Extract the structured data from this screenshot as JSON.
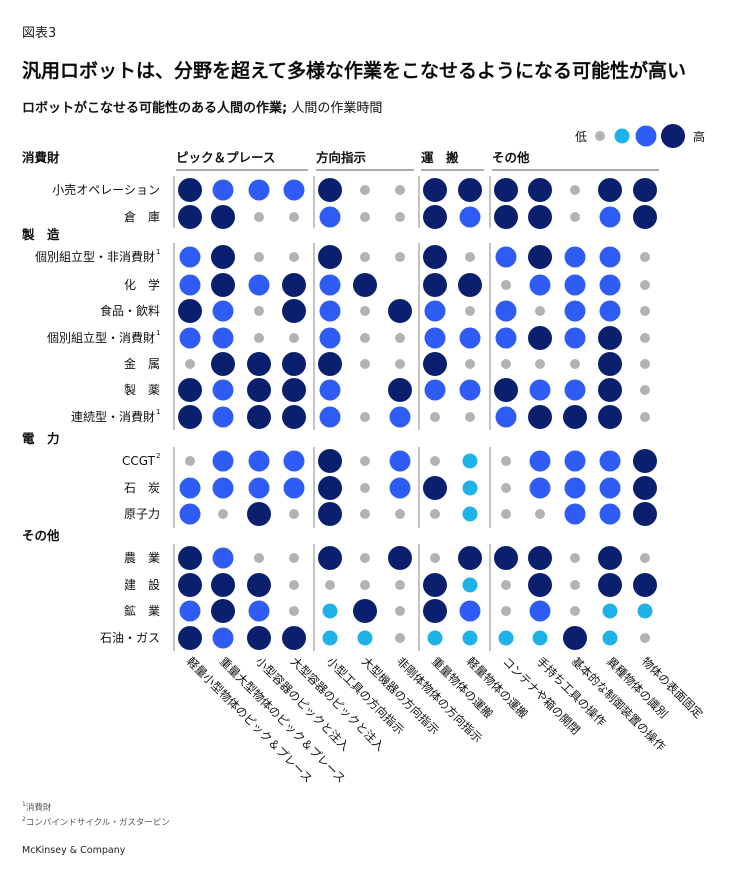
{
  "figure_label": "図表3",
  "title": "汎用ロボットは、分野を超えて多様な作業をこなせるようになる可能性が高い",
  "subtitle_bold": "ロボットがこなせる可能性のある人間の作業;",
  "subtitle_rest": " 人間の作業時間",
  "legend": {
    "low": "低",
    "high": "高"
  },
  "colors": {
    "level1": "#b3b3b3",
    "level2": "#1fb2e8",
    "level3": "#2f5cf5",
    "level4": "#0a1f6e",
    "rule": "#555555"
  },
  "footnotes": [
    "消費財",
    "コンバインドサイクル・ガスタービン"
  ],
  "footnote_marks": [
    "1",
    "2"
  ],
  "brand": "McKinsey & Company",
  "chart_data": {
    "type": "heatmap",
    "scale": "1 = 低 … 4 = 高 (0 = 空白)",
    "column_groups": [
      {
        "label": "ピック＆プレース",
        "span": [
          0,
          3
        ]
      },
      {
        "label": "方向指示",
        "span": [
          4,
          6
        ]
      },
      {
        "label": "運　搬",
        "span": [
          7,
          8
        ]
      },
      {
        "label": "その他",
        "span": [
          9,
          13
        ]
      }
    ],
    "columns": [
      "軽量小型物体のピック＆プレース",
      "重量大型物体のピック＆プレース",
      "小型容器のピックと注入",
      "大型容器のピックと注入",
      "小型工具の方向指示",
      "大型機器の方向指示",
      "非剛体物体の方向指示",
      "重量物体の運搬",
      "軽量物体の運搬",
      "コンテナや箱の開閉",
      "手持ち工具の操作",
      "基本的な制御装置の操作",
      "異種物体の識別",
      "物体の表面固定"
    ],
    "row_groups": [
      {
        "label": "消費財",
        "rows": [
          {
            "label": "小売オペレーション",
            "values": [
              4,
              3,
              3,
              3,
              4,
              1,
              1,
              4,
              4,
              4,
              4,
              1,
              4,
              4
            ]
          },
          {
            "label": "倉　庫",
            "values": [
              4,
              4,
              1,
              1,
              3,
              1,
              1,
              4,
              3,
              4,
              4,
              1,
              3,
              4
            ]
          }
        ]
      },
      {
        "label": "製　造",
        "rows": [
          {
            "label": "個別組立型・非消費財",
            "mark": "1",
            "values": [
              3,
              4,
              1,
              1,
              4,
              1,
              1,
              4,
              1,
              3,
              4,
              3,
              3,
              1
            ]
          },
          {
            "label": "化　学",
            "values": [
              3,
              4,
              3,
              4,
              3,
              4,
              0,
              4,
              4,
              1,
              3,
              3,
              3,
              1
            ]
          },
          {
            "label": "食品・飲料",
            "values": [
              4,
              3,
              1,
              4,
              3,
              1,
              4,
              3,
              1,
              3,
              1,
              3,
              3,
              1
            ]
          },
          {
            "label": "個別組立型・消費財",
            "mark": "1",
            "values": [
              3,
              3,
              1,
              1,
              3,
              1,
              1,
              3,
              3,
              3,
              4,
              3,
              4,
              1
            ]
          },
          {
            "label": "金　属",
            "values": [
              1,
              4,
              4,
              4,
              4,
              1,
              1,
              4,
              1,
              1,
              1,
              1,
              4,
              1
            ]
          },
          {
            "label": "製　薬",
            "values": [
              4,
              3,
              4,
              4,
              3,
              0,
              4,
              3,
              3,
              4,
              3,
              3,
              4,
              1
            ]
          },
          {
            "label": "連続型・消費財",
            "mark": "1",
            "values": [
              4,
              3,
              4,
              4,
              3,
              1,
              3,
              1,
              1,
              3,
              4,
              4,
              4,
              1
            ]
          }
        ]
      },
      {
        "label": "電　力",
        "rows": [
          {
            "label": "CCGT",
            "mark": "2",
            "values": [
              1,
              3,
              3,
              3,
              4,
              1,
              3,
              1,
              2,
              1,
              3,
              3,
              3,
              4
            ]
          },
          {
            "label": "石　炭",
            "values": [
              3,
              3,
              3,
              3,
              4,
              1,
              3,
              4,
              2,
              1,
              3,
              3,
              3,
              4
            ]
          },
          {
            "label": "原子力",
            "values": [
              3,
              1,
              4,
              1,
              4,
              1,
              1,
              1,
              2,
              1,
              1,
              3,
              3,
              4
            ]
          }
        ]
      },
      {
        "label": "その他",
        "rows": [
          {
            "label": "農　業",
            "values": [
              4,
              3,
              1,
              1,
              4,
              1,
              4,
              1,
              4,
              4,
              4,
              1,
              4,
              1
            ]
          },
          {
            "label": "建　設",
            "values": [
              4,
              4,
              4,
              1,
              1,
              1,
              1,
              4,
              2,
              1,
              4,
              1,
              4,
              4
            ]
          },
          {
            "label": "鉱　業",
            "values": [
              3,
              4,
              3,
              1,
              2,
              4,
              1,
              4,
              3,
              1,
              3,
              1,
              2,
              2
            ]
          },
          {
            "label": "石油・ガス",
            "values": [
              4,
              3,
              4,
              4,
              2,
              2,
              1,
              2,
              2,
              2,
              2,
              4,
              2,
              1
            ]
          }
        ]
      }
    ]
  }
}
